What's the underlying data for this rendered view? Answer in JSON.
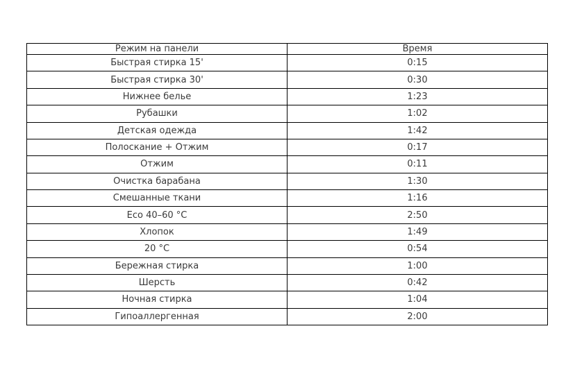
{
  "chart_data": {
    "type": "table",
    "columns": [
      "Режим на панели",
      "Время"
    ],
    "rows": [
      [
        "Быстрая стирка 15'",
        "0:15"
      ],
      [
        "Быстрая стирка 30'",
        "0:30"
      ],
      [
        "Нижнее белье",
        "1:23"
      ],
      [
        "Рубашки",
        "1:02"
      ],
      [
        "Детская одежда",
        "1:42"
      ],
      [
        "Полоскание + Отжим",
        "0:17"
      ],
      [
        "Отжим",
        "0:11"
      ],
      [
        "Очистка барабана",
        "1:30"
      ],
      [
        "Смешанные ткани",
        "1:16"
      ],
      [
        "Eco 40–60 °C",
        "2:50"
      ],
      [
        "Хлопок",
        "1:49"
      ],
      [
        "20 °C",
        "0:54"
      ],
      [
        "Бережная стирка",
        "1:00"
      ],
      [
        "Шерсть",
        "0:42"
      ],
      [
        "Ночная стирка",
        "1:04"
      ],
      [
        "Гипоаллергенная",
        "2:00"
      ]
    ],
    "layout": {
      "grid": "full-borders",
      "column_alignment": [
        "center",
        "center"
      ]
    },
    "colors": {
      "border": "#000000",
      "text": "#3a3a3a",
      "background": "#ffffff"
    }
  }
}
